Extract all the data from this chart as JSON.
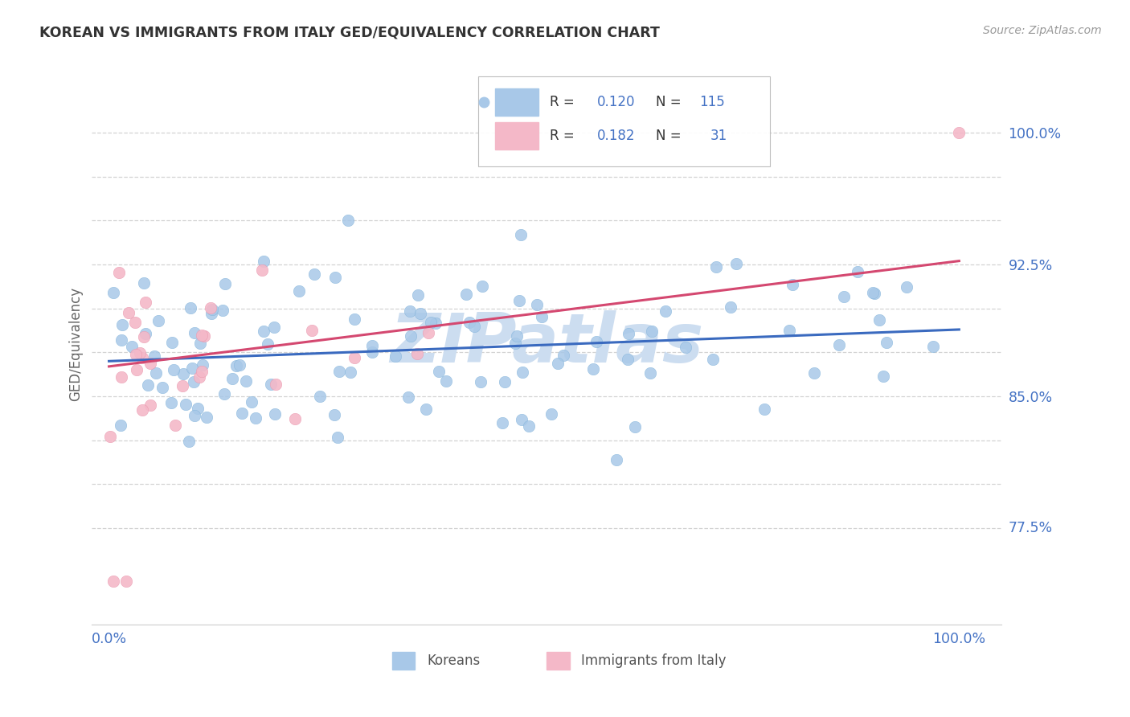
{
  "title": "KOREAN VS IMMIGRANTS FROM ITALY GED/EQUIVALENCY CORRELATION CHART",
  "source": "Source: ZipAtlas.com",
  "ylabel": "GED/Equivalency",
  "ymin": 0.72,
  "ymax": 1.04,
  "xmin": -0.02,
  "xmax": 1.05,
  "watermark": "ZIPatlas",
  "blue_color": "#a8c8e8",
  "blue_edge_color": "#7ab0d8",
  "pink_color": "#f4b8c8",
  "pink_edge_color": "#e890a8",
  "blue_line_color": "#3a6abf",
  "pink_line_color": "#d44870",
  "blue_line": {
    "x0": 0.0,
    "y0": 0.87,
    "x1": 1.0,
    "y1": 0.888
  },
  "pink_line": {
    "x0": 0.0,
    "y0": 0.867,
    "x1": 1.0,
    "y1": 0.927
  },
  "title_color": "#333333",
  "axis_color": "#4472c4",
  "grid_color": "#cccccc",
  "background_color": "#ffffff",
  "watermark_color": "#ccddf0",
  "legend_R1": "R = 0.120",
  "legend_N1": "N = 115",
  "legend_R2": "R = 0.182",
  "legend_N2": "N =  31",
  "legend_label1": "Koreans",
  "legend_label2": "Immigrants from Italy",
  "ytick_positions": [
    0.775,
    0.8,
    0.825,
    0.85,
    0.875,
    0.9,
    0.925,
    0.95,
    0.975,
    1.0
  ],
  "ytick_labels": [
    "",
    "",
    "",
    "85.0%",
    "",
    "",
    "92.5%",
    "",
    "",
    "100.0%"
  ],
  "extra_ytick": 0.775,
  "extra_ytick_label": "77.5%"
}
